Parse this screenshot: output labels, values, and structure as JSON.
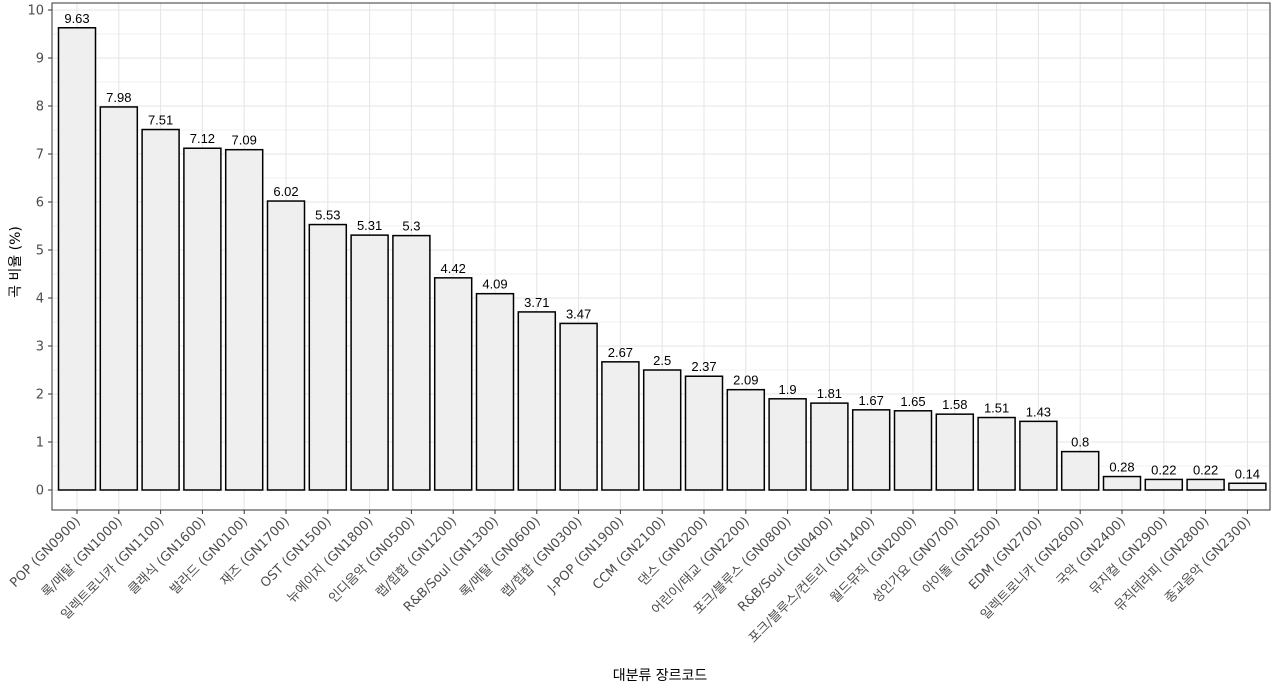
{
  "chart_data": {
    "type": "bar",
    "title": "",
    "xlabel": "대분류 장르코드",
    "ylabel": "곡 비율 (%)",
    "ylim": [
      0,
      10
    ],
    "yticks": [
      0,
      1,
      2,
      3,
      4,
      5,
      6,
      7,
      8,
      9,
      10
    ],
    "grid": true,
    "legend": "none",
    "categories": [
      "POP (GN0900)",
      "록/메탈 (GN1000)",
      "일렉트로니카 (GN1100)",
      "클래식 (GN1600)",
      "발라드 (GN0100)",
      "재즈 (GN1700)",
      "OST (GN1500)",
      "뉴에이지 (GN1800)",
      "인디음악 (GN0500)",
      "랩/힙합 (GN1200)",
      "R&B/Soul (GN1300)",
      "록/메탈 (GN0600)",
      "랩/힙합 (GN0300)",
      "J-POP (GN1900)",
      "CCM (GN2100)",
      "댄스 (GN0200)",
      "어린이/태교 (GN2200)",
      "포크/블루스 (GN0800)",
      "R&B/Soul (GN0400)",
      "포크/블루스/컨트리 (GN1400)",
      "월드뮤직 (GN2000)",
      "성인가요 (GN0700)",
      "아이돌 (GN2500)",
      "EDM (GN2700)",
      "일렉트로니카 (GN2600)",
      "국악 (GN2400)",
      "뮤지컬 (GN2900)",
      "뮤직테라피 (GN2800)",
      "종교음악 (GN2300)"
    ],
    "values": [
      9.63,
      7.98,
      7.51,
      7.12,
      7.09,
      6.02,
      5.53,
      5.31,
      5.3,
      4.42,
      4.09,
      3.71,
      3.47,
      2.67,
      2.5,
      2.37,
      2.09,
      1.9,
      1.81,
      1.67,
      1.65,
      1.58,
      1.51,
      1.43,
      0.8,
      0.28,
      0.22,
      0.22,
      0.14
    ],
    "labels": [
      "9.63",
      "7.98",
      "7.51",
      "7.12",
      "7.09",
      "6.02",
      "5.53",
      "5.31",
      "5.3",
      "4.42",
      "4.09",
      "3.71",
      "3.47",
      "2.67",
      "2.5",
      "2.37",
      "2.09",
      "1.9",
      "1.81",
      "1.67",
      "1.65",
      "1.58",
      "1.51",
      "1.43",
      "0.8",
      "0.28",
      "0.22",
      "0.22",
      "0.14"
    ],
    "colors": {
      "bar_fill": "#efefef",
      "bar_stroke": "#000000",
      "grid": "#e6e6e6",
      "panel_border": "#333333"
    }
  }
}
